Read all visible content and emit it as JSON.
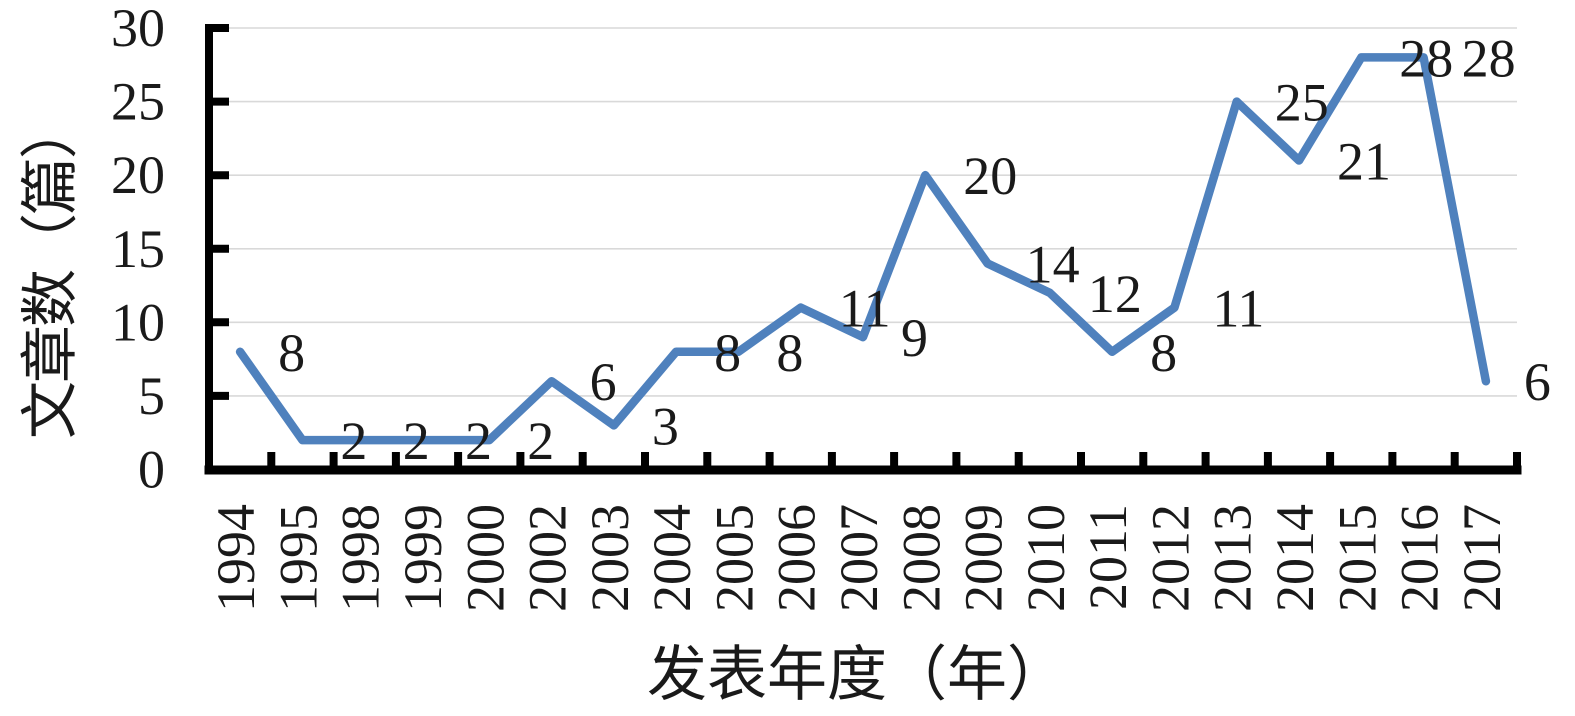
{
  "chart_data": {
    "type": "line",
    "xlabel": "发表年度（年）",
    "ylabel": "文章数（篇）",
    "categories": [
      "1994",
      "1995",
      "1998",
      "1999",
      "2000",
      "2002",
      "2003",
      "2004",
      "2005",
      "2006",
      "2007",
      "2008",
      "2009",
      "2010",
      "2011",
      "2012",
      "2013",
      "2014",
      "2015",
      "2016",
      "2017"
    ],
    "values": [
      8,
      2,
      2,
      2,
      2,
      6,
      3,
      8,
      8,
      11,
      9,
      20,
      14,
      12,
      8,
      11,
      25,
      21,
      28,
      28,
      6
    ],
    "ylim": [
      0,
      30
    ],
    "yticks": [
      0,
      5,
      10,
      15,
      20,
      25,
      30
    ],
    "data_labels_visible": true,
    "grid": "horizontal",
    "legend": "none",
    "colors": {
      "line": "#4F81BD",
      "grid": "#D9D9D9",
      "axis": "#000000",
      "text": "#1A1A1A"
    }
  }
}
